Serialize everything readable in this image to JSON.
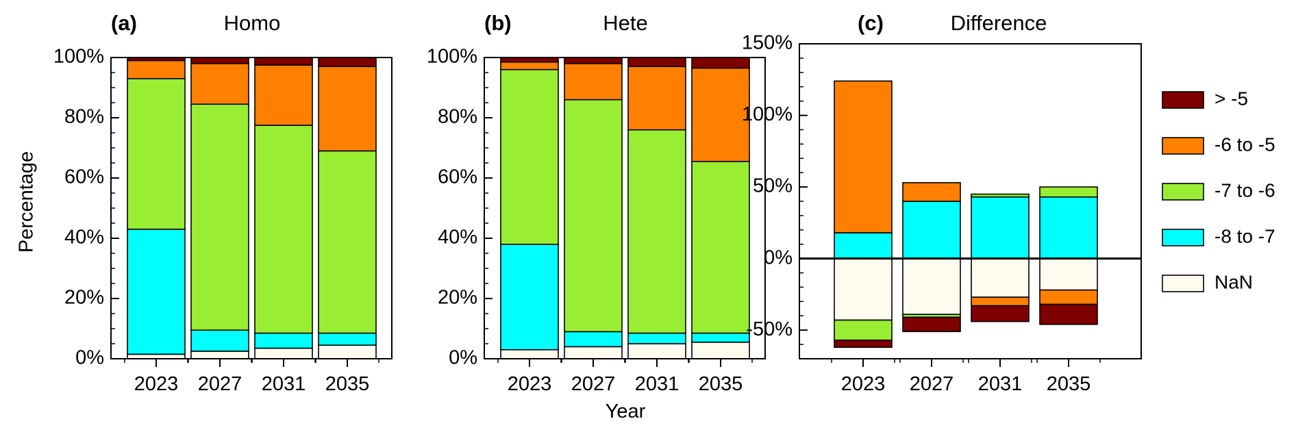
{
  "colors": {
    "gt_minus5": "#7f0000",
    "m6_to_m5": "#ff8000",
    "m7_to_m6": "#99ee33",
    "m8_to_m7": "#00ffff",
    "nan": "#fffcef"
  },
  "legend": {
    "items": [
      {
        "key": "gt_minus5",
        "label": "> -5"
      },
      {
        "key": "m6_to_m5",
        "label": "-6 to -5"
      },
      {
        "key": "m7_to_m6",
        "label": "-7 to -6"
      },
      {
        "key": "m8_to_m7",
        "label": "-8 to -7"
      },
      {
        "key": "nan",
        "label": "NaN"
      }
    ]
  },
  "ylabel": "Percentage",
  "xlabel": "Year",
  "chart_data": [
    {
      "type": "bar",
      "stacked": true,
      "tag": "(a)",
      "title": "Homo",
      "categories": [
        "2023",
        "2027",
        "2031",
        "2035"
      ],
      "ylim": [
        0,
        100
      ],
      "yticks": [
        "0%",
        "20%",
        "40%",
        "60%",
        "80%",
        "100%"
      ],
      "series": [
        {
          "key": "nan",
          "name": "NaN",
          "values": [
            1.5,
            2.5,
            3.5,
            4.5
          ]
        },
        {
          "key": "m8_to_m7",
          "name": "-8 to -7",
          "values": [
            41.5,
            7.0,
            5.0,
            4.0
          ]
        },
        {
          "key": "m7_to_m6",
          "name": "-7 to -6",
          "values": [
            50.0,
            75.0,
            69.0,
            60.5
          ]
        },
        {
          "key": "m6_to_m5",
          "name": "-6 to -5",
          "values": [
            6.0,
            13.5,
            20.0,
            28.0
          ]
        },
        {
          "key": "gt_minus5",
          "name": "> -5",
          "values": [
            1.0,
            2.0,
            2.5,
            3.0
          ]
        }
      ]
    },
    {
      "type": "bar",
      "stacked": true,
      "tag": "(b)",
      "title": "Hete",
      "categories": [
        "2023",
        "2027",
        "2031",
        "2035"
      ],
      "ylim": [
        0,
        100
      ],
      "yticks": [
        "0%",
        "20%",
        "40%",
        "60%",
        "80%",
        "100%"
      ],
      "series": [
        {
          "key": "nan",
          "name": "NaN",
          "values": [
            3.0,
            4.0,
            5.0,
            5.5
          ]
        },
        {
          "key": "m8_to_m7",
          "name": "-8 to -7",
          "values": [
            35.0,
            5.0,
            3.5,
            3.0
          ]
        },
        {
          "key": "m7_to_m6",
          "name": "-7 to -6",
          "values": [
            58.0,
            77.0,
            67.5,
            57.0
          ]
        },
        {
          "key": "m6_to_m5",
          "name": "-6 to -5",
          "values": [
            2.5,
            12.0,
            21.0,
            31.0
          ]
        },
        {
          "key": "gt_minus5",
          "name": "> -5",
          "values": [
            1.5,
            2.0,
            3.0,
            3.5
          ]
        }
      ]
    },
    {
      "type": "bar",
      "stacked": true,
      "diverging": true,
      "tag": "(c)",
      "title": "Difference",
      "categories": [
        "2023",
        "2027",
        "2031",
        "2035"
      ],
      "ylim": [
        -70,
        150
      ],
      "yticks": [
        "-50%",
        "0%",
        "50%",
        "100%",
        "150%"
      ],
      "series": [
        {
          "key": "nan",
          "name": "NaN",
          "values": [
            -43,
            -39,
            -27,
            -22
          ]
        },
        {
          "key": "m8_to_m7",
          "name": "-8 to -7",
          "values": [
            18,
            40,
            43,
            43
          ]
        },
        {
          "key": "m7_to_m6",
          "name": "-7 to -6",
          "values": [
            -14,
            -2,
            2,
            7
          ]
        },
        {
          "key": "m6_to_m5",
          "name": "-6 to -5",
          "values": [
            106,
            13,
            -6,
            -10
          ]
        },
        {
          "key": "gt_minus5",
          "name": "> -5",
          "values": [
            -5,
            -10,
            -11,
            -14
          ]
        }
      ]
    }
  ]
}
